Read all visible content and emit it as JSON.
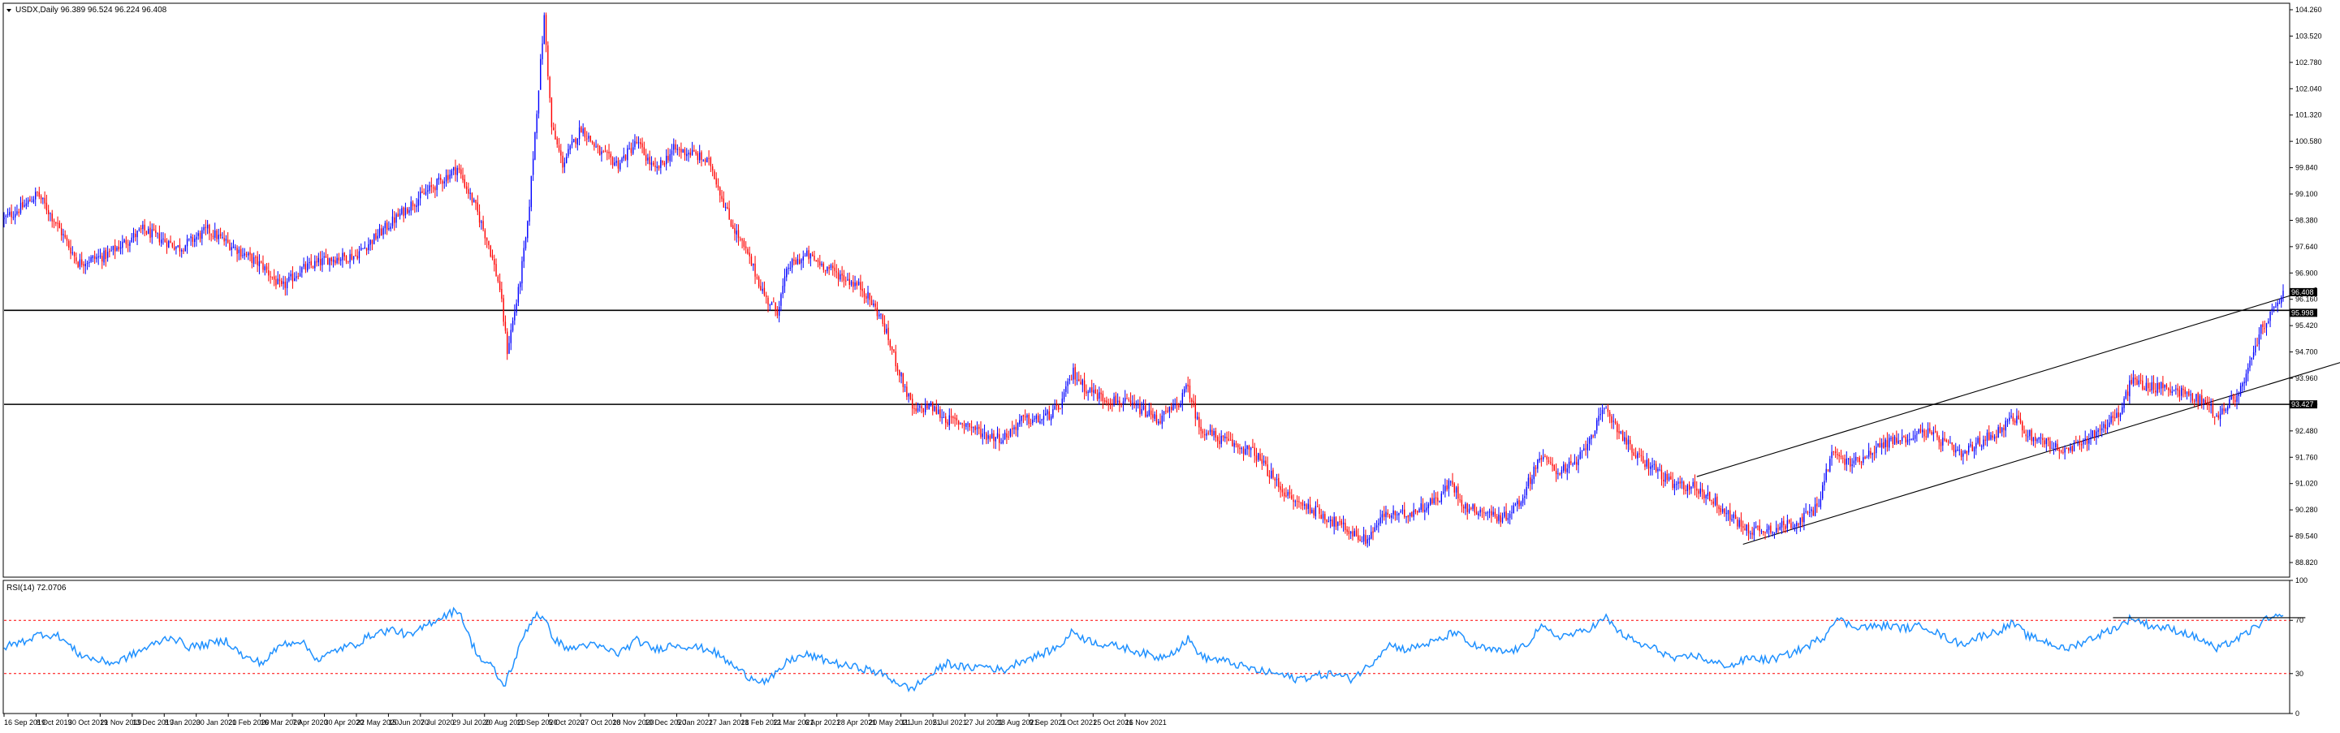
{
  "chart_data": [
    {
      "type": "candlestick",
      "symbol_header": "USDX,Daily  96.389 96.524 96.224 96.408",
      "price_axis_labels": [
        "104.260",
        "103.520",
        "102.780",
        "102.040",
        "101.320",
        "100.580",
        "99.840",
        "99.100",
        "98.380",
        "97.640",
        "96.900",
        "96.160",
        "95.420",
        "94.700",
        "93.960",
        "93.220",
        "92.480",
        "91.760",
        "91.020",
        "90.280",
        "89.540",
        "88.820"
      ],
      "price_markers": [
        {
          "label": "96.408",
          "value": 96.408,
          "color": "#000000"
        },
        {
          "label": "95.998",
          "value": 95.998,
          "color": "#000000"
        },
        {
          "label": "93.427",
          "value": 93.427,
          "color": "#000000"
        }
      ],
      "horizontal_lines": [
        95.998,
        93.427
      ],
      "colors": {
        "up": "#0000ff",
        "down": "#ff0000",
        "line": "#000000"
      },
      "ylim": [
        88.7,
        104.4
      ],
      "date_labels": [
        "16 Sep 2019",
        "8 Oct 2019",
        "30 Oct 2019",
        "21 Nov 2019",
        "13 Dec 2019",
        "8 Jan 2020",
        "30 Jan 2020",
        "21 Feb 2020",
        "16 Mar 2020",
        "7 Apr 2020",
        "30 Apr 2020",
        "22 May 2020",
        "15 Jun 2020",
        "7 Jul 2020",
        "29 Jul 2020",
        "20 Aug 2020",
        "11 Sep 2020",
        "5 Oct 2020",
        "27 Oct 2020",
        "18 Nov 2020",
        "10 Dec 2020",
        "5 Jan 2021",
        "27 Jan 2021",
        "18 Feb 2021",
        "12 Mar 2021",
        "6 Apr 2021",
        "28 Apr 2021",
        "20 May 2021",
        "11 Jun 2021",
        "5 Jul 2021",
        "27 Jul 2021",
        "18 Aug 2021",
        "9 Sep 2021",
        "1 Oct 2021",
        "25 Oct 2021",
        "16 Nov 2021"
      ],
      "path_keypoints": [
        [
          0,
          98.5
        ],
        [
          12,
          98.9
        ],
        [
          18,
          99.2
        ],
        [
          28,
          98.4
        ],
        [
          40,
          97.3
        ],
        [
          55,
          97.5
        ],
        [
          75,
          98.2
        ],
        [
          95,
          97.7
        ],
        [
          110,
          98.2
        ],
        [
          125,
          97.7
        ],
        [
          140,
          97.2
        ],
        [
          150,
          96.6
        ],
        [
          160,
          97.1
        ],
        [
          175,
          97.4
        ],
        [
          190,
          97.5
        ],
        [
          205,
          98.2
        ],
        [
          220,
          98.9
        ],
        [
          235,
          99.5
        ],
        [
          245,
          99.9
        ],
        [
          255,
          98.8
        ],
        [
          262,
          97.8
        ],
        [
          268,
          96.6
        ],
        [
          272,
          94.9
        ],
        [
          278,
          96.5
        ],
        [
          283,
          98.3
        ],
        [
          288,
          101.5
        ],
        [
          292,
          104.0
        ],
        [
          296,
          101.0
        ],
        [
          302,
          100.0
        ],
        [
          312,
          101.0
        ],
        [
          322,
          100.3
        ],
        [
          332,
          100.0
        ],
        [
          342,
          100.6
        ],
        [
          352,
          99.8
        ],
        [
          362,
          100.4
        ],
        [
          372,
          100.3
        ],
        [
          382,
          100.0
        ],
        [
          392,
          98.5
        ],
        [
          402,
          97.5
        ],
        [
          412,
          96.3
        ],
        [
          418,
          96.0
        ],
        [
          424,
          97.2
        ],
        [
          434,
          97.5
        ],
        [
          444,
          97.2
        ],
        [
          454,
          96.9
        ],
        [
          464,
          96.6
        ],
        [
          474,
          95.8
        ],
        [
          480,
          94.9
        ],
        [
          486,
          94.0
        ],
        [
          492,
          93.2
        ],
        [
          500,
          93.4
        ],
        [
          510,
          93.0
        ],
        [
          520,
          92.9
        ],
        [
          530,
          92.6
        ],
        [
          540,
          92.5
        ],
        [
          550,
          93.0
        ],
        [
          560,
          93.0
        ],
        [
          570,
          93.3
        ],
        [
          578,
          94.3
        ],
        [
          584,
          93.9
        ],
        [
          594,
          93.6
        ],
        [
          604,
          93.5
        ],
        [
          614,
          93.3
        ],
        [
          624,
          93.0
        ],
        [
          634,
          93.4
        ],
        [
          640,
          93.9
        ],
        [
          646,
          92.8
        ],
        [
          656,
          92.5
        ],
        [
          666,
          92.3
        ],
        [
          676,
          92.1
        ],
        [
          686,
          91.4
        ],
        [
          696,
          90.8
        ],
        [
          706,
          90.6
        ],
        [
          716,
          90.3
        ],
        [
          726,
          90.0
        ],
        [
          736,
          89.7
        ],
        [
          746,
          90.4
        ],
        [
          756,
          90.4
        ],
        [
          766,
          90.6
        ],
        [
          776,
          90.9
        ],
        [
          782,
          91.3
        ],
        [
          790,
          90.6
        ],
        [
          800,
          90.5
        ],
        [
          810,
          90.3
        ],
        [
          820,
          90.8
        ],
        [
          830,
          92.0
        ],
        [
          840,
          91.6
        ],
        [
          850,
          91.8
        ],
        [
          860,
          92.8
        ],
        [
          866,
          93.3
        ],
        [
          872,
          92.8
        ],
        [
          882,
          92.0
        ],
        [
          892,
          91.7
        ],
        [
          902,
          91.2
        ],
        [
          912,
          91.2
        ],
        [
          922,
          90.9
        ],
        [
          932,
          90.4
        ],
        [
          942,
          90.0
        ],
        [
          952,
          90.0
        ],
        [
          962,
          90.1
        ],
        [
          972,
          90.3
        ],
        [
          980,
          90.6
        ],
        [
          988,
          92.1
        ],
        [
          998,
          91.8
        ],
        [
          1008,
          92.1
        ],
        [
          1018,
          92.4
        ],
        [
          1028,
          92.5
        ],
        [
          1038,
          92.7
        ],
        [
          1048,
          92.4
        ],
        [
          1058,
          92.0
        ],
        [
          1068,
          92.4
        ],
        [
          1078,
          92.7
        ],
        [
          1086,
          93.1
        ],
        [
          1094,
          92.6
        ],
        [
          1104,
          92.4
        ],
        [
          1114,
          92.1
        ],
        [
          1124,
          92.4
        ],
        [
          1134,
          92.8
        ],
        [
          1144,
          93.2
        ],
        [
          1150,
          94.1
        ],
        [
          1160,
          93.9
        ],
        [
          1170,
          93.9
        ],
        [
          1180,
          93.7
        ],
        [
          1190,
          93.5
        ],
        [
          1196,
          93.1
        ],
        [
          1204,
          93.5
        ],
        [
          1210,
          93.9
        ],
        [
          1214,
          94.5
        ],
        [
          1220,
          95.5
        ],
        [
          1226,
          95.9
        ],
        [
          1231,
          96.4
        ]
      ],
      "channel_lines": [
        {
          "from": [
            915,
            91.45
          ],
          "to": [
            1250,
            96.62
          ]
        },
        {
          "from": [
            940,
            89.6
          ],
          "to": [
            1268,
            94.65
          ]
        }
      ]
    },
    {
      "type": "line",
      "indicator_header": "RSI(14) 72.0706",
      "axis_labels": [
        "100",
        "70",
        "30",
        "0"
      ],
      "ylim": [
        0,
        100
      ],
      "levels": [
        70,
        30
      ],
      "level_color": "#ff0000",
      "line_color": "#1e90ff",
      "resistance_line": {
        "from": [
          1140,
          72.0
        ],
        "to": [
          1244,
          72.0
        ]
      },
      "rsi_keypoints": [
        [
          0,
          50
        ],
        [
          10,
          54
        ],
        [
          20,
          60
        ],
        [
          30,
          58
        ],
        [
          40,
          45
        ],
        [
          50,
          40
        ],
        [
          60,
          38
        ],
        [
          75,
          48
        ],
        [
          90,
          58
        ],
        [
          100,
          50
        ],
        [
          110,
          52
        ],
        [
          120,
          55
        ],
        [
          130,
          42
        ],
        [
          140,
          38
        ],
        [
          150,
          52
        ],
        [
          160,
          55
        ],
        [
          170,
          40
        ],
        [
          180,
          48
        ],
        [
          190,
          52
        ],
        [
          200,
          60
        ],
        [
          210,
          63
        ],
        [
          220,
          58
        ],
        [
          230,
          68
        ],
        [
          240,
          75
        ],
        [
          246,
          78
        ],
        [
          252,
          55
        ],
        [
          258,
          40
        ],
        [
          264,
          35
        ],
        [
          270,
          20
        ],
        [
          276,
          40
        ],
        [
          282,
          62
        ],
        [
          288,
          76
        ],
        [
          292,
          70
        ],
        [
          298,
          55
        ],
        [
          306,
          48
        ],
        [
          314,
          52
        ],
        [
          322,
          50
        ],
        [
          332,
          45
        ],
        [
          342,
          55
        ],
        [
          352,
          48
        ],
        [
          362,
          52
        ],
        [
          372,
          50
        ],
        [
          382,
          48
        ],
        [
          392,
          38
        ],
        [
          402,
          28
        ],
        [
          412,
          24
        ],
        [
          418,
          30
        ],
        [
          424,
          40
        ],
        [
          434,
          44
        ],
        [
          444,
          40
        ],
        [
          454,
          36
        ],
        [
          464,
          34
        ],
        [
          474,
          30
        ],
        [
          482,
          24
        ],
        [
          490,
          18
        ],
        [
          500,
          28
        ],
        [
          510,
          38
        ],
        [
          520,
          34
        ],
        [
          530,
          36
        ],
        [
          540,
          32
        ],
        [
          550,
          40
        ],
        [
          560,
          44
        ],
        [
          570,
          50
        ],
        [
          578,
          62
        ],
        [
          584,
          56
        ],
        [
          594,
          52
        ],
        [
          604,
          50
        ],
        [
          614,
          46
        ],
        [
          624,
          42
        ],
        [
          634,
          48
        ],
        [
          640,
          56
        ],
        [
          648,
          42
        ],
        [
          658,
          40
        ],
        [
          668,
          36
        ],
        [
          678,
          32
        ],
        [
          688,
          30
        ],
        [
          698,
          26
        ],
        [
          708,
          28
        ],
        [
          718,
          30
        ],
        [
          728,
          26
        ],
        [
          738,
          36
        ],
        [
          748,
          52
        ],
        [
          758,
          48
        ],
        [
          768,
          52
        ],
        [
          778,
          56
        ],
        [
          784,
          62
        ],
        [
          792,
          52
        ],
        [
          802,
          48
        ],
        [
          812,
          46
        ],
        [
          822,
          50
        ],
        [
          830,
          65
        ],
        [
          840,
          58
        ],
        [
          850,
          60
        ],
        [
          860,
          66
        ],
        [
          866,
          72
        ],
        [
          874,
          60
        ],
        [
          884,
          52
        ],
        [
          894,
          48
        ],
        [
          904,
          40
        ],
        [
          914,
          44
        ],
        [
          924,
          38
        ],
        [
          934,
          36
        ],
        [
          944,
          42
        ],
        [
          954,
          40
        ],
        [
          964,
          44
        ],
        [
          974,
          50
        ],
        [
          984,
          58
        ],
        [
          990,
          72
        ],
        [
          998,
          66
        ],
        [
          1008,
          65
        ],
        [
          1018,
          66
        ],
        [
          1028,
          64
        ],
        [
          1038,
          66
        ],
        [
          1048,
          58
        ],
        [
          1058,
          52
        ],
        [
          1068,
          58
        ],
        [
          1078,
          62
        ],
        [
          1086,
          68
        ],
        [
          1094,
          58
        ],
        [
          1104,
          54
        ],
        [
          1114,
          48
        ],
        [
          1124,
          54
        ],
        [
          1134,
          60
        ],
        [
          1144,
          66
        ],
        [
          1150,
          72
        ],
        [
          1160,
          66
        ],
        [
          1170,
          64
        ],
        [
          1180,
          60
        ],
        [
          1190,
          54
        ],
        [
          1196,
          48
        ],
        [
          1204,
          54
        ],
        [
          1210,
          58
        ],
        [
          1216,
          64
        ],
        [
          1222,
          70
        ],
        [
          1228,
          72
        ],
        [
          1232,
          72
        ]
      ]
    }
  ]
}
